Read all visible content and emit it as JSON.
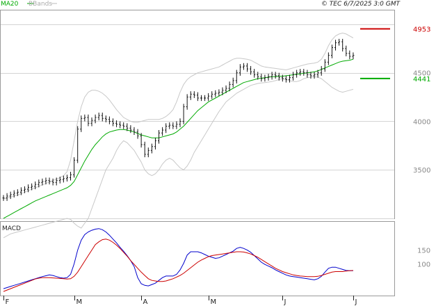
{
  "header": {
    "copyright": "© TEC 6/7/2025 3:0 GMT"
  },
  "chart_data": [
    {
      "type": "line",
      "panel": "price",
      "legend": [
        {
          "name": "MA20",
          "color": "#00aa00"
        },
        {
          "name": "BBands",
          "color": "#bbbbbb"
        }
      ],
      "ylim": [
        3000,
        5150
      ],
      "y_ticks": [
        3500,
        4000,
        4500
      ],
      "y_tick_labels": [
        "3500",
        "4000",
        "4500"
      ],
      "x_month_labels": [
        "F",
        "M",
        "A",
        "M",
        "J",
        "J"
      ],
      "x_month_starts": [
        0,
        20,
        39,
        58,
        79,
        99
      ],
      "levels": [
        {
          "name": "resistance",
          "value": 4953,
          "label": "4953",
          "color": "#cc0000"
        },
        {
          "name": "support",
          "value": 4441,
          "label": "4441",
          "color": "#00aa00"
        }
      ],
      "close": [
        3210,
        3230,
        3245,
        3260,
        3270,
        3290,
        3300,
        3320,
        3330,
        3350,
        3370,
        3380,
        3390,
        3380,
        3370,
        3390,
        3400,
        3410,
        3420,
        3450,
        3600,
        3920,
        4030,
        4040,
        3980,
        4010,
        4040,
        4060,
        4030,
        4020,
        4000,
        3980,
        3970,
        3960,
        3950,
        3930,
        3910,
        3890,
        3850,
        3760,
        3660,
        3700,
        3740,
        3800,
        3880,
        3910,
        3950,
        3960,
        3950,
        3970,
        4000,
        4150,
        4250,
        4280,
        4270,
        4240,
        4240,
        4240,
        4260,
        4280,
        4290,
        4300,
        4320,
        4340,
        4380,
        4420,
        4500,
        4560,
        4570,
        4540,
        4510,
        4480,
        4460,
        4440,
        4450,
        4460,
        4480,
        4470,
        4450,
        4440,
        4430,
        4450,
        4480,
        4500,
        4510,
        4500,
        4480,
        4470,
        4480,
        4500,
        4540,
        4610,
        4680,
        4760,
        4810,
        4820,
        4750,
        4700,
        4670,
        4680
      ],
      "ma20": [
        3000,
        3020,
        3040,
        3060,
        3080,
        3100,
        3120,
        3140,
        3160,
        3180,
        3195,
        3210,
        3225,
        3240,
        3255,
        3270,
        3285,
        3300,
        3315,
        3340,
        3380,
        3450,
        3520,
        3590,
        3650,
        3710,
        3760,
        3800,
        3840,
        3870,
        3890,
        3900,
        3910,
        3915,
        3915,
        3910,
        3900,
        3890,
        3875,
        3860,
        3850,
        3840,
        3830,
        3830,
        3830,
        3840,
        3850,
        3860,
        3870,
        3890,
        3920,
        3950,
        3990,
        4030,
        4070,
        4110,
        4140,
        4170,
        4200,
        4220,
        4240,
        4260,
        4280,
        4300,
        4320,
        4340,
        4360,
        4380,
        4400,
        4410,
        4420,
        4430,
        4440,
        4445,
        4450,
        4455,
        4460,
        4460,
        4465,
        4465,
        4470,
        4475,
        4480,
        4485,
        4490,
        4495,
        4500,
        4505,
        4510,
        4520,
        4535,
        4550,
        4565,
        4580,
        4595,
        4610,
        4620,
        4625,
        4630,
        4640
      ],
      "bb_upper": [
        3200,
        3210,
        3220,
        3230,
        3240,
        3255,
        3270,
        3285,
        3300,
        3315,
        3330,
        3345,
        3360,
        3375,
        3390,
        3405,
        3420,
        3440,
        3480,
        3600,
        3800,
        4000,
        4150,
        4250,
        4300,
        4320,
        4320,
        4310,
        4290,
        4260,
        4220,
        4170,
        4120,
        4080,
        4040,
        4020,
        4000,
        3990,
        3990,
        4000,
        4010,
        4020,
        4020,
        4020,
        4020,
        4030,
        4050,
        4080,
        4120,
        4200,
        4300,
        4380,
        4430,
        4460,
        4480,
        4500,
        4510,
        4520,
        4530,
        4540,
        4550,
        4560,
        4580,
        4600,
        4620,
        4640,
        4650,
        4650,
        4645,
        4640,
        4630,
        4610,
        4590,
        4570,
        4560,
        4555,
        4550,
        4545,
        4540,
        4535,
        4530,
        4540,
        4550,
        4560,
        4570,
        4580,
        4590,
        4595,
        4600,
        4610,
        4640,
        4700,
        4780,
        4840,
        4880,
        4900,
        4910,
        4900,
        4880,
        4860
      ],
      "bb_lower": [
        2800,
        2820,
        2840,
        2850,
        2860,
        2870,
        2880,
        2890,
        2900,
        2910,
        2920,
        2930,
        2940,
        2950,
        2960,
        2970,
        2980,
        2990,
        3000,
        2990,
        2950,
        2920,
        2900,
        2950,
        3000,
        3100,
        3200,
        3300,
        3400,
        3500,
        3560,
        3620,
        3700,
        3760,
        3800,
        3780,
        3740,
        3700,
        3640,
        3580,
        3500,
        3460,
        3440,
        3460,
        3500,
        3560,
        3600,
        3620,
        3600,
        3560,
        3520,
        3500,
        3540,
        3600,
        3680,
        3740,
        3800,
        3860,
        3920,
        3980,
        4040,
        4100,
        4150,
        4200,
        4230,
        4260,
        4290,
        4310,
        4330,
        4350,
        4370,
        4380,
        4390,
        4395,
        4400,
        4405,
        4410,
        4420,
        4430,
        4440,
        4430,
        4420,
        4410,
        4410,
        4420,
        4440,
        4450,
        4455,
        4460,
        4455,
        4440,
        4410,
        4380,
        4350,
        4330,
        4310,
        4300,
        4310,
        4320,
        4330
      ]
    },
    {
      "type": "line",
      "panel": "MACD",
      "title": "MACD",
      "ylim": [
        -15,
        255
      ],
      "y_ticks": [
        100,
        150
      ],
      "y_tick_labels": [
        "100",
        "150"
      ],
      "series": [
        {
          "color": "#0000cc",
          "values": [
            10,
            14,
            18,
            22,
            26,
            30,
            34,
            38,
            42,
            46,
            50,
            54,
            57,
            60,
            58,
            54,
            50,
            48,
            50,
            62,
            100,
            150,
            186,
            206,
            216,
            222,
            226,
            228,
            224,
            216,
            204,
            190,
            176,
            160,
            146,
            130,
            112,
            90,
            50,
            28,
            22,
            20,
            25,
            30,
            40,
            50,
            56,
            56,
            56,
            62,
            78,
            102,
            132,
            144,
            144,
            144,
            140,
            134,
            128,
            124,
            120,
            122,
            128,
            134,
            140,
            146,
            156,
            160,
            156,
            150,
            142,
            130,
            118,
            106,
            98,
            92,
            86,
            78,
            72,
            66,
            60,
            56,
            54,
            52,
            50,
            48,
            46,
            44,
            42,
            46,
            55,
            70,
            84,
            88,
            88,
            84,
            80,
            76,
            75,
            75
          ]
        },
        {
          "color": "#cc0000",
          "values": [
            0,
            5,
            10,
            15,
            20,
            25,
            30,
            35,
            40,
            45,
            48,
            50,
            50,
            50,
            49,
            48,
            47,
            46,
            45,
            46,
            55,
            70,
            90,
            110,
            130,
            150,
            170,
            180,
            188,
            190,
            186,
            178,
            168,
            156,
            142,
            128,
            112,
            98,
            84,
            70,
            58,
            46,
            40,
            38,
            36,
            36,
            38,
            42,
            46,
            52,
            58,
            66,
            76,
            86,
            96,
            106,
            114,
            120,
            126,
            130,
            132,
            134,
            136,
            138,
            140,
            142,
            144,
            144,
            143,
            140,
            136,
            130,
            124,
            116,
            108,
            100,
            92,
            84,
            78,
            72,
            68,
            64,
            60,
            58,
            56,
            55,
            54,
            54,
            54,
            55,
            58,
            62,
            66,
            70,
            72,
            72,
            72,
            74,
            75,
            76
          ]
        }
      ]
    }
  ]
}
